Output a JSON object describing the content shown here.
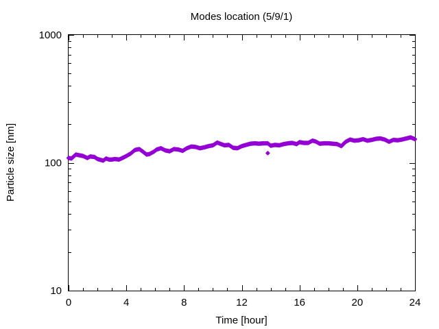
{
  "chart_data": {
    "type": "scatter",
    "title": "Modes location (5/9/1)",
    "xlabel": "Time [hour]",
    "ylabel": "Particle size [nm]",
    "xlim": [
      0,
      24
    ],
    "ylim": [
      10,
      1000
    ],
    "yscale": "log",
    "xticks": [
      0,
      4,
      8,
      12,
      16,
      20,
      24
    ],
    "xtick_labels": [
      "0",
      "4",
      "8",
      "12",
      "16",
      "20",
      "24"
    ],
    "yticks": [
      10,
      100,
      1000
    ],
    "ytick_labels": [
      "10",
      "100",
      "1000"
    ],
    "grid": false,
    "legend": "none",
    "marker_color": "#9400d3",
    "outlier": {
      "x": 13.8,
      "y": 119
    },
    "series_keypoints": {
      "x": [
        0.0,
        0.2,
        0.5,
        1.0,
        1.3,
        1.5,
        1.8,
        2.0,
        2.4,
        2.6,
        2.8,
        3.0,
        3.2,
        3.5,
        3.8,
        4.0,
        4.3,
        4.6,
        4.9,
        5.2,
        5.4,
        5.6,
        5.9,
        6.1,
        6.4,
        6.7,
        7.0,
        7.3,
        7.6,
        7.9,
        8.2,
        8.5,
        8.8,
        9.1,
        9.4,
        9.7,
        10.0,
        10.3,
        10.5,
        10.8,
        11.1,
        11.4,
        11.7,
        12.0,
        12.3,
        12.6,
        12.9,
        13.2,
        13.5,
        13.8,
        14.0,
        14.3,
        14.6,
        14.9,
        15.2,
        15.5,
        15.8,
        16.0,
        16.3,
        16.6,
        16.9,
        17.1,
        17.4,
        17.7,
        18.0,
        18.3,
        18.6,
        18.9,
        19.2,
        19.5,
        19.8,
        20.1,
        20.4,
        20.7,
        21.0,
        21.3,
        21.6,
        21.9,
        22.2,
        22.5,
        22.8,
        23.1,
        23.4,
        23.7,
        24.0
      ],
      "y": [
        109,
        108,
        116,
        113,
        109,
        112,
        111,
        107,
        104,
        108,
        106,
        106,
        107,
        106,
        110,
        113,
        118,
        126,
        128,
        121,
        116,
        117,
        122,
        127,
        130,
        125,
        123,
        128,
        127,
        124,
        130,
        134,
        133,
        130,
        132,
        135,
        137,
        144,
        141,
        137,
        138,
        131,
        130,
        135,
        138,
        141,
        142,
        141,
        142,
        142,
        136,
        138,
        137,
        140,
        142,
        143,
        140,
        145,
        143,
        143,
        149,
        147,
        141,
        142,
        142,
        141,
        140,
        135,
        146,
        152,
        149,
        150,
        153,
        149,
        151,
        154,
        155,
        152,
        146,
        151,
        150,
        152,
        155,
        158,
        153
      ]
    }
  }
}
